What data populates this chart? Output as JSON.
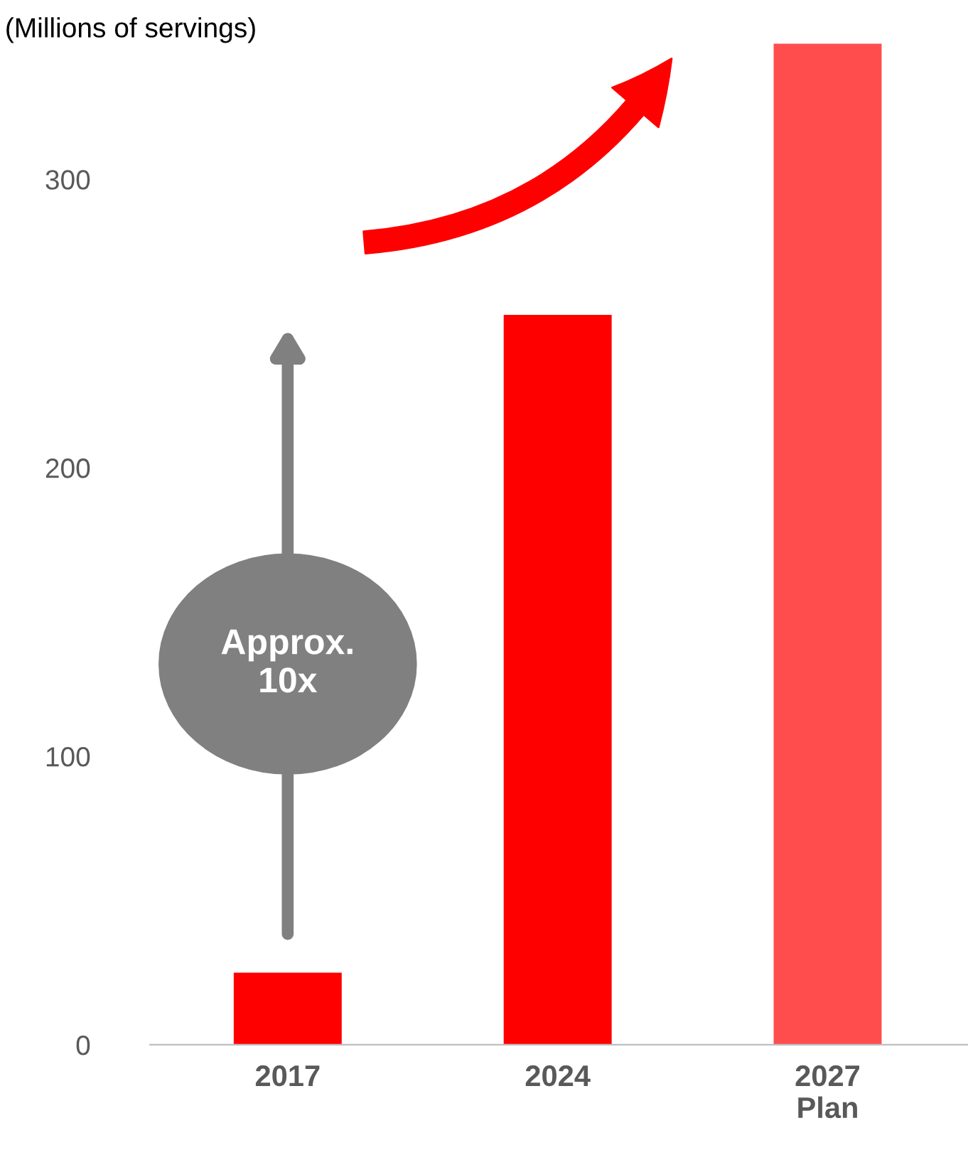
{
  "chart_data": {
    "type": "bar",
    "ylabel": "(Millions of servings)",
    "categories": [
      "2017",
      "2024",
      "2027\nPlan"
    ],
    "values": [
      25,
      253,
      347
    ],
    "colors": [
      "#ff0000",
      "#ff0000",
      "#ff4d4d"
    ],
    "ylim": [
      0,
      350
    ],
    "yticks": [
      0,
      100,
      200,
      300
    ],
    "grid": false,
    "legend": false,
    "annotations": [
      "Approx.\n10x"
    ]
  }
}
